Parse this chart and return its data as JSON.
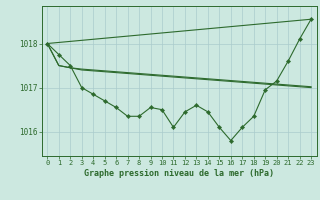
{
  "background_color": "#cce8e0",
  "grid_color": "#aacccc",
  "line_color": "#2d6a2d",
  "title": "Graphe pression niveau de la mer (hPa)",
  "ylabel_ticks": [
    1016,
    1017,
    1018
  ],
  "ylim": [
    1015.45,
    1018.85
  ],
  "xlim": [
    -0.5,
    23.5
  ],
  "series": {
    "line1_x": [
      0,
      1,
      2,
      3,
      4,
      5,
      6,
      7,
      8,
      9,
      10,
      11,
      12,
      13,
      14,
      15,
      16,
      17,
      18,
      19,
      20,
      21,
      22,
      23
    ],
    "line1_y": [
      1018.0,
      1017.75,
      1017.5,
      1017.0,
      1016.85,
      1016.7,
      1016.55,
      1016.35,
      1016.35,
      1016.55,
      1016.5,
      1016.1,
      1016.45,
      1016.6,
      1016.45,
      1016.1,
      1015.8,
      1016.1,
      1016.35,
      1016.95,
      1017.15,
      1017.6,
      1018.1,
      1018.55
    ],
    "line2_x": [
      0,
      23
    ],
    "line2_y": [
      1018.0,
      1018.55
    ],
    "line3_x": [
      0,
      1,
      2,
      3,
      4,
      5,
      6,
      7,
      8,
      9,
      10,
      11,
      12,
      13,
      14,
      15,
      16,
      17,
      18,
      19,
      20,
      21,
      22,
      23
    ],
    "line3_y": [
      1018.0,
      1017.5,
      1017.45,
      1017.42,
      1017.4,
      1017.38,
      1017.36,
      1017.34,
      1017.32,
      1017.3,
      1017.28,
      1017.26,
      1017.24,
      1017.22,
      1017.2,
      1017.18,
      1017.16,
      1017.14,
      1017.12,
      1017.1,
      1017.08,
      1017.06,
      1017.04,
      1017.02
    ],
    "line4_x": [
      0,
      1,
      2,
      3,
      4,
      5,
      6,
      7,
      8,
      9,
      10,
      11,
      12,
      13,
      14,
      15,
      16,
      17,
      18,
      19,
      20,
      21,
      22,
      23
    ],
    "line4_y": [
      1018.0,
      1017.5,
      1017.45,
      1017.4,
      1017.38,
      1017.36,
      1017.34,
      1017.32,
      1017.3,
      1017.28,
      1017.26,
      1017.24,
      1017.22,
      1017.2,
      1017.18,
      1017.16,
      1017.14,
      1017.12,
      1017.1,
      1017.08,
      1017.06,
      1017.04,
      1017.02,
      1017.0
    ]
  },
  "xtick_labels": [
    "0",
    "1",
    "2",
    "3",
    "4",
    "5",
    "6",
    "7",
    "8",
    "9",
    "10",
    "11",
    "12",
    "13",
    "14",
    "15",
    "16",
    "17",
    "18",
    "19",
    "20",
    "21",
    "22",
    "23"
  ],
  "xtick_fontsize": 5,
  "ytick_fontsize": 5.5,
  "title_fontsize": 6
}
